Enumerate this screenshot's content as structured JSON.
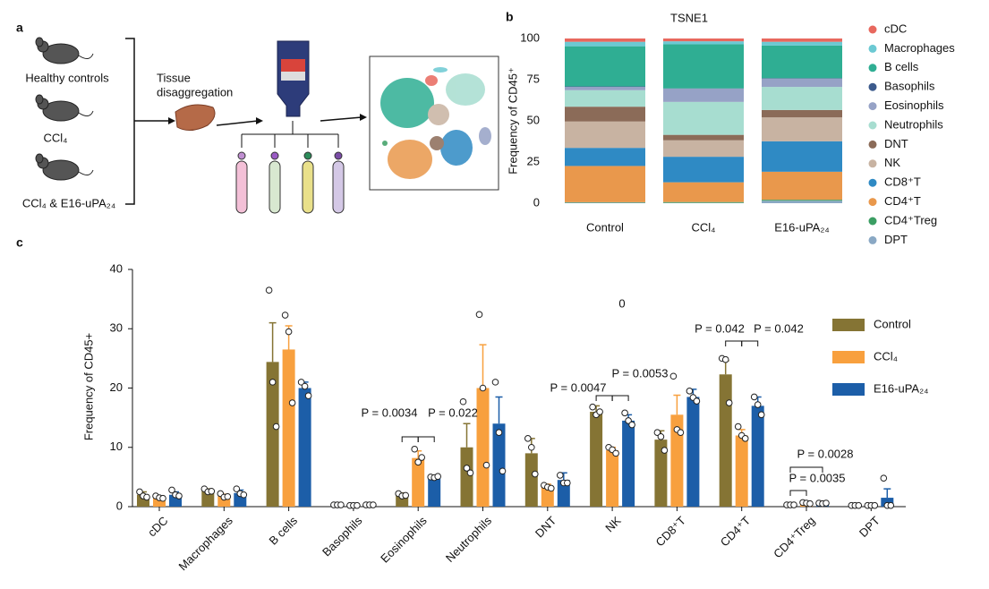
{
  "panel_a": {
    "label": "a",
    "groups": [
      "Healthy controls",
      "CCl₄",
      "CCl₄ & E16-uPA₂₄"
    ],
    "step": [
      "Tissue",
      "disaggregation"
    ]
  },
  "chart_data": [
    {
      "type": "stacked_bar",
      "panel_label": "b",
      "title": "TSNE1",
      "y_label": "Frequency of CD45⁺",
      "categories": [
        "Control",
        "CCl₄",
        "E16-uPA₂₄"
      ],
      "ylim": [
        0,
        100
      ],
      "yticks": [
        0,
        25,
        50,
        75,
        100
      ],
      "series": [
        {
          "name": "cDC",
          "color": "#e8685e",
          "values": [
            2,
            1.7,
            2
          ]
        },
        {
          "name": "Macrophages",
          "color": "#6cc9d3",
          "values": [
            2.7,
            1.8,
            2.3
          ]
        },
        {
          "name": "B cells",
          "color": "#2fae93",
          "values": [
            24.4,
            26.8,
            19.8
          ]
        },
        {
          "name": "Basophils",
          "color": "#3c5a8c",
          "values": [
            0.3,
            0.2,
            0.3
          ]
        },
        {
          "name": "Eosinophils",
          "color": "#96a2c6",
          "values": [
            2,
            8,
            5
          ]
        },
        {
          "name": "Neutrophils",
          "color": "#a7ddd0",
          "values": [
            10,
            20,
            14
          ]
        },
        {
          "name": "DNT",
          "color": "#8b6b58",
          "values": [
            9,
            3.3,
            4.5
          ]
        },
        {
          "name": "NK",
          "color": "#c8b3a2",
          "values": [
            16,
            10,
            14.5
          ]
        },
        {
          "name": "CD8⁺T",
          "color": "#2f8ac4",
          "values": [
            11,
            15.5,
            18.5
          ]
        },
        {
          "name": "CD4⁺T",
          "color": "#e9984c",
          "values": [
            22,
            12,
            17
          ]
        },
        {
          "name": "CD4⁺Treg",
          "color": "#3b9e63",
          "values": [
            0.3,
            0.5,
            0.6
          ]
        },
        {
          "name": "DPT",
          "color": "#8aa8c4",
          "values": [
            0.3,
            0.2,
            1.5
          ]
        }
      ]
    },
    {
      "type": "grouped_bar",
      "panel_label": "c",
      "title": "0",
      "y_label": "Frequency of CD45+",
      "categories": [
        "cDC",
        "Macrophages",
        "B cells",
        "Basophils",
        "Eosinophils",
        "Neutrophils",
        "DNT",
        "NK",
        "CD8⁺T",
        "CD4⁺T",
        "CD4⁺Treg",
        "DPT"
      ],
      "ylim": [
        0,
        40
      ],
      "yticks": [
        0,
        10,
        20,
        30,
        40
      ],
      "series": [
        {
          "name": "Control",
          "color": "#857434",
          "values": [
            2,
            2.7,
            24.4,
            0.3,
            2,
            10,
            9,
            16,
            11.3,
            22.3,
            0.3,
            0.2
          ],
          "errors": [
            0.5,
            0.3,
            6.6,
            0.1,
            0.3,
            4,
            2.5,
            1,
            1.5,
            2.3,
            0.1,
            0.1
          ],
          "points": [
            [
              2.5,
              1.8,
              1.6
            ],
            [
              3,
              2.5,
              2.6
            ],
            [
              36.5,
              21,
              13.5
            ],
            [
              0.3,
              0.3,
              0.3
            ],
            [
              2.2,
              1.8,
              1.9
            ],
            [
              17.7,
              6.5,
              5.7
            ],
            [
              11.5,
              10,
              5.5
            ],
            [
              16.8,
              15.5,
              16
            ],
            [
              12.5,
              11.8,
              9.5
            ],
            [
              25,
              24.8,
              17.5
            ],
            [
              0.3,
              0.3,
              0.3
            ],
            [
              0.2,
              0.2,
              0.2
            ]
          ]
        },
        {
          "name": "CCl₄",
          "color": "#f8a03e",
          "values": [
            1.5,
            1.8,
            26.5,
            0.2,
            8.2,
            20,
            3.3,
            9.5,
            15.5,
            12,
            0.6,
            0.2
          ],
          "errors": [
            0.3,
            0.3,
            4,
            0.1,
            1.2,
            7.3,
            0.5,
            0.5,
            3.3,
            1,
            0.1,
            0.1
          ],
          "points": [
            [
              1.8,
              1.5,
              1.4
            ],
            [
              2.2,
              1.6,
              1.7
            ],
            [
              32.3,
              29.5,
              17.5
            ],
            [
              0.2,
              0.2,
              0.2
            ],
            [
              9.7,
              7.5,
              8.3
            ],
            [
              32.4,
              20,
              7
            ],
            [
              3.6,
              3.3,
              3.1
            ],
            [
              10,
              9.6,
              9
            ],
            [
              22,
              13,
              12.5
            ],
            [
              13.5,
              12,
              11.5
            ],
            [
              0.7,
              0.6,
              0.5
            ],
            [
              0.2,
              0.2,
              0.2
            ]
          ]
        },
        {
          "name": "E16-uPA₂₄",
          "color": "#1c5ea8",
          "values": [
            2,
            2.3,
            20,
            0.3,
            5,
            14,
            4.5,
            14.5,
            18.5,
            17,
            0.6,
            1.5
          ],
          "errors": [
            0.5,
            0.5,
            1,
            0.1,
            0.3,
            4.5,
            1.2,
            1,
            1.3,
            1.5,
            0.1,
            1.5
          ],
          "points": [
            [
              2.8,
              2,
              1.8
            ],
            [
              3,
              2.2,
              2
            ],
            [
              21,
              20.3,
              18.7
            ],
            [
              0.3,
              0.3,
              0.3
            ],
            [
              5,
              4.9,
              5.1
            ],
            [
              21,
              12.5,
              6
            ],
            [
              5.3,
              4,
              4
            ],
            [
              15.8,
              14.5,
              13.8
            ],
            [
              19.5,
              18.4,
              17.8
            ],
            [
              18.5,
              17.2,
              15.5
            ],
            [
              0.6,
              0.5,
              0.6
            ],
            [
              4.8,
              0.2,
              0.2
            ]
          ]
        }
      ],
      "annotations": [
        "P = 0.0034",
        "P = 0.022",
        "P = 0.0047",
        "P = 0.0053",
        "P = 0.042",
        "P = 0.042",
        "P = 0.0028",
        "P = 0.0035"
      ]
    }
  ]
}
